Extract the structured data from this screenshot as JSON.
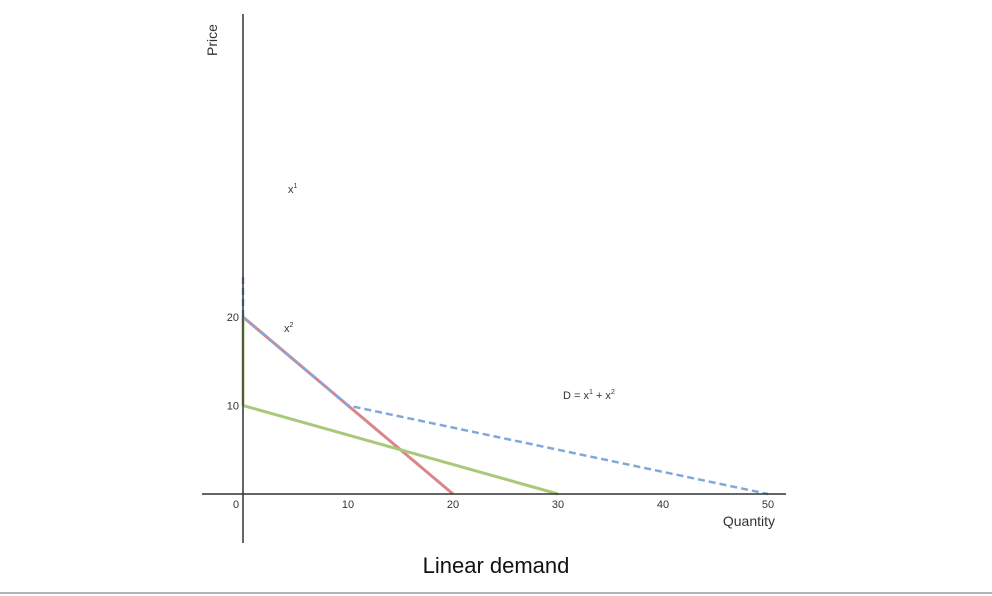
{
  "caption": "Linear demand",
  "chart_data": {
    "type": "line",
    "title": "",
    "xlabel": "Quantity",
    "ylabel": "Price",
    "xlim": [
      0,
      50
    ],
    "ylim": [
      0,
      20
    ],
    "x_ticks": [
      "0",
      "10",
      "20",
      "30",
      "40",
      "50"
    ],
    "y_ticks": [
      "10",
      "20"
    ],
    "grid": false,
    "series": [
      {
        "label_main": "x",
        "label_sup": "1",
        "color": "#d9858a",
        "style": "solid",
        "points": [
          [
            0,
            20
          ],
          [
            20,
            0
          ]
        ]
      },
      {
        "label_main": "x",
        "label_sup": "2",
        "color": "#a9c97a",
        "style": "solid",
        "points": [
          [
            0,
            10
          ],
          [
            30,
            0
          ]
        ]
      },
      {
        "label_main": "D = x",
        "label_sup": "1",
        "label_mid": " + x",
        "label_sup2": "2",
        "color": "#80a8d8",
        "style": "dashed",
        "points": [
          [
            0,
            20
          ],
          [
            10,
            10
          ],
          [
            50,
            0
          ]
        ]
      }
    ],
    "vertical_segments": [
      {
        "color": "#a9c97a",
        "style": "solid",
        "x": 0,
        "y": [
          10,
          20
        ]
      },
      {
        "color": "#80a8d8",
        "style": "dashed",
        "x": 0,
        "y": [
          20,
          24.5
        ]
      }
    ]
  }
}
